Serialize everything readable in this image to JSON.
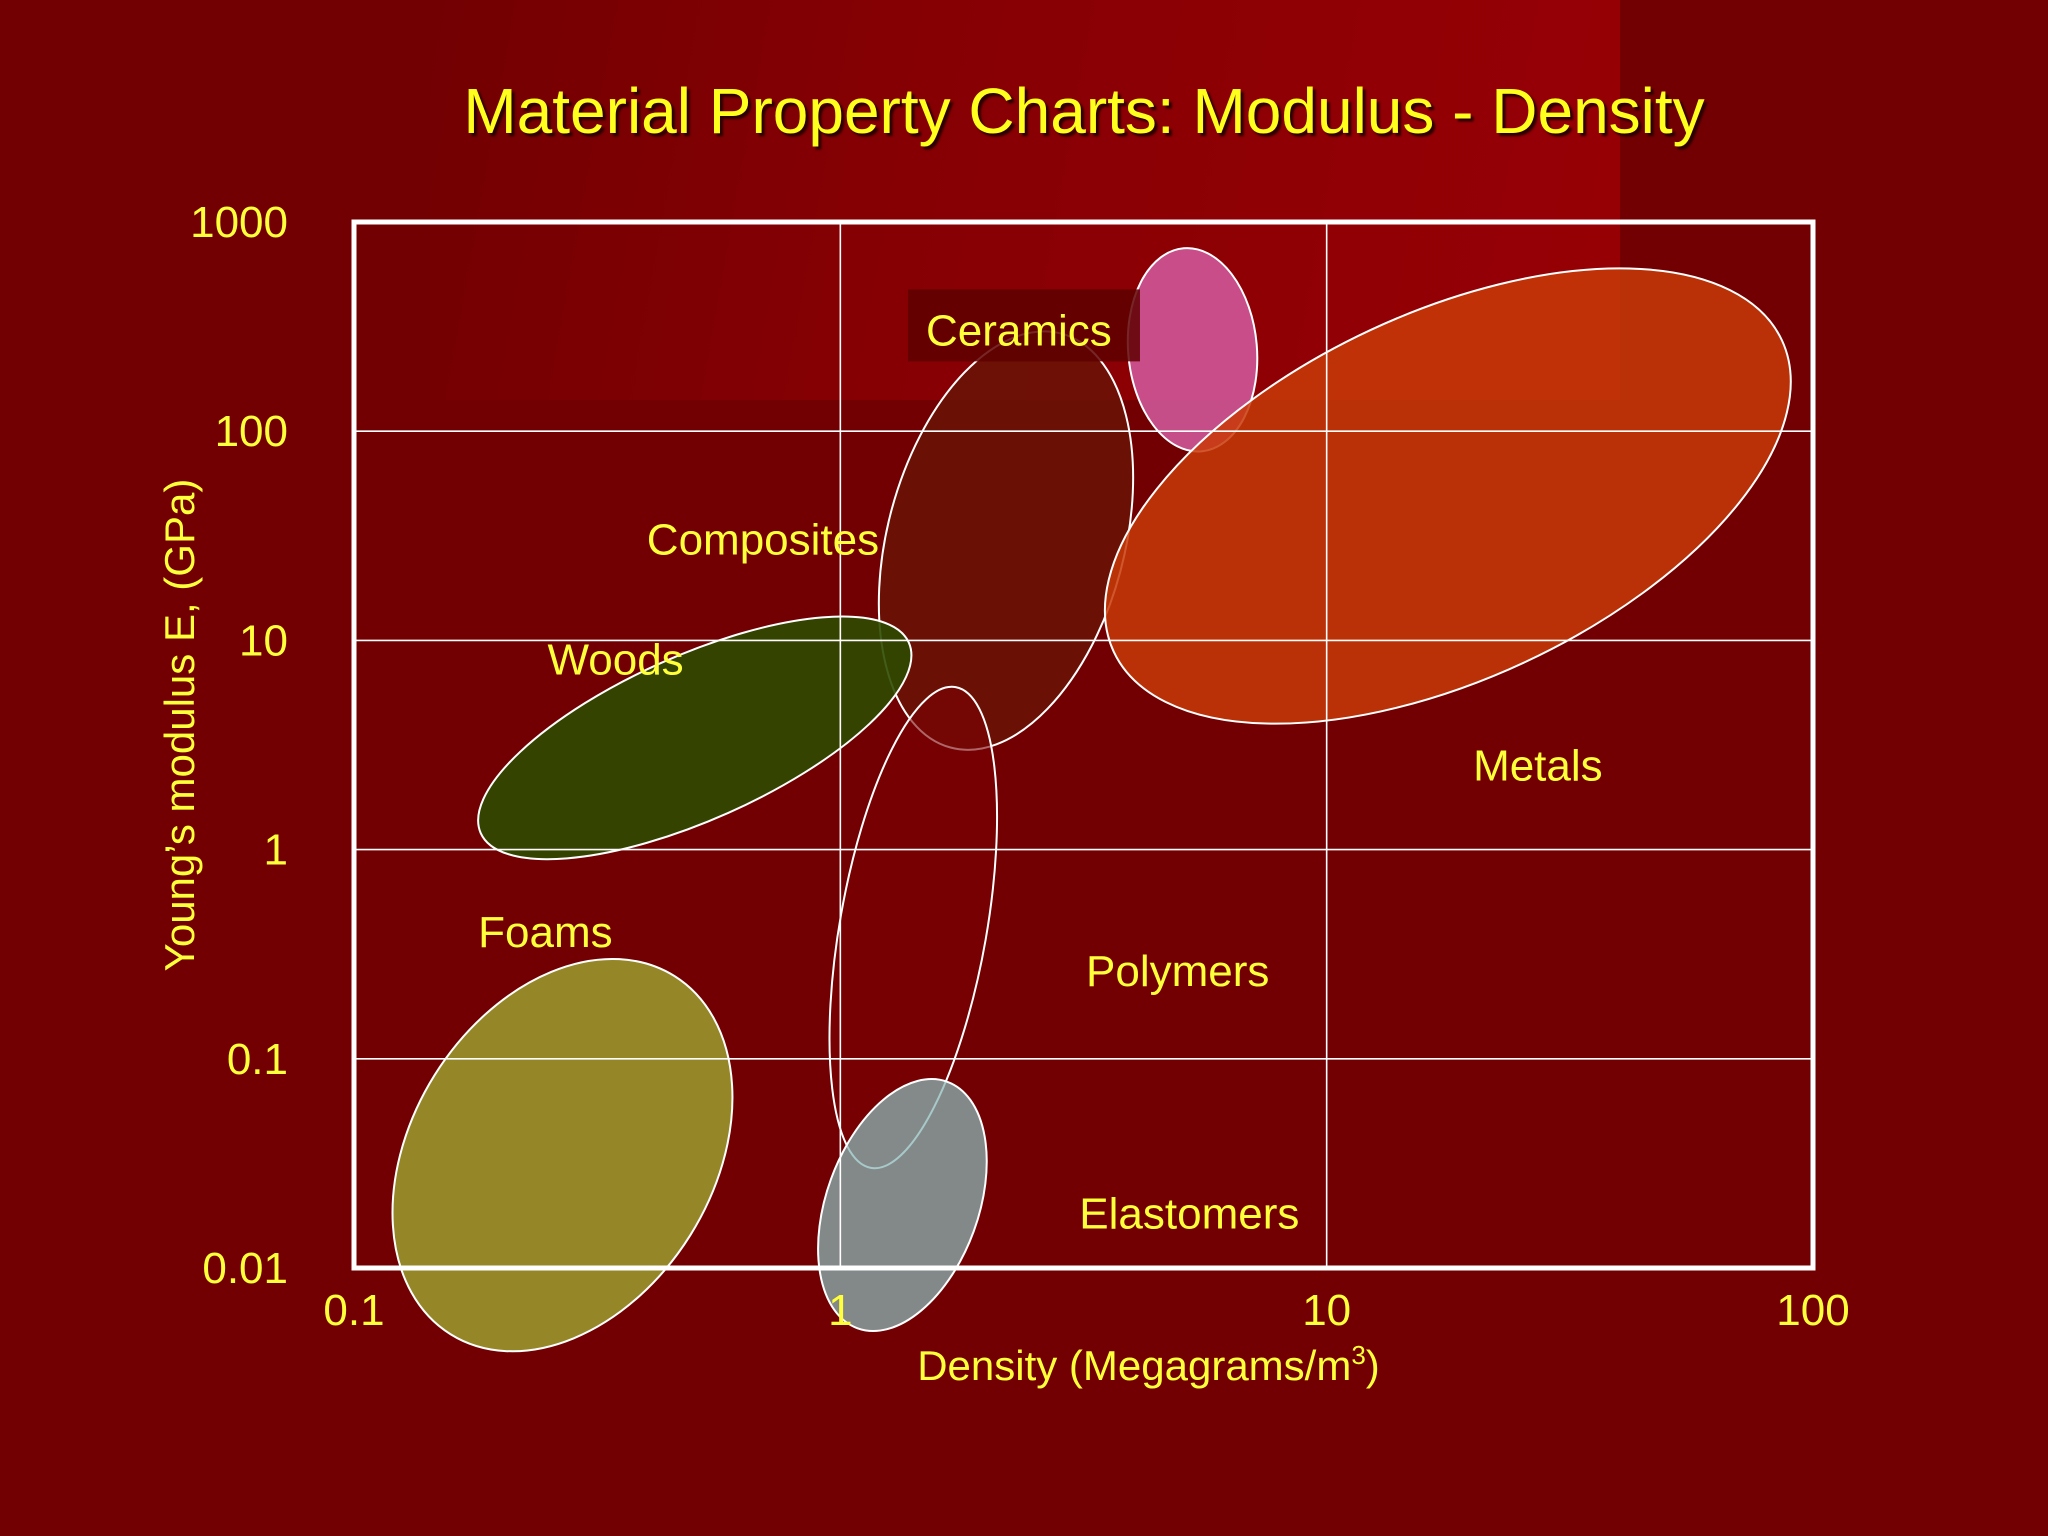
{
  "title": "Material Property Charts: Modulus - Density",
  "chart_data": {
    "type": "scatter",
    "title": "Material Property Charts: Modulus - Density",
    "xlabel_main": "Density  (Megagrams/m",
    "xlabel_sup": "3",
    "xlabel_close": ")",
    "ylabel": "Young’s modulus E, (GPa)",
    "xscale": "log",
    "yscale": "log",
    "xlim": [
      0.1,
      100
    ],
    "ylim": [
      0.01,
      1000
    ],
    "xticks": [
      "0.1",
      "1",
      "10",
      "100"
    ],
    "yticks": [
      "1000",
      "100",
      "10",
      "1",
      "0.1",
      "0.01"
    ],
    "grid": true,
    "regions": [
      {
        "name": "Ceramics",
        "density": [
          3.9,
          7.2
        ],
        "modulus": [
          80,
          750
        ],
        "angle": -5,
        "fill": "#d35aa0",
        "opacity": 0.85
      },
      {
        "name": "Composites",
        "density": [
          1.2,
          4.0
        ],
        "modulus": [
          3,
          300
        ],
        "angle": -75,
        "fill": "#6a1206",
        "opacity": 0.9
      },
      {
        "name": "Metals",
        "density": [
          3.5,
          90
        ],
        "modulus": [
          4,
          600
        ],
        "angle": -25,
        "fill": "#c83a08",
        "opacity": 0.85
      },
      {
        "name": "Woods",
        "density": [
          0.18,
          1.4
        ],
        "modulus": [
          0.9,
          13
        ],
        "angle": -24,
        "fill": "#2d4a00",
        "opacity": 0.9
      },
      {
        "name": "Polymers",
        "density": [
          0.95,
          2.1
        ],
        "modulus": [
          0.03,
          6
        ],
        "angle": -80,
        "fill": "#7a0004",
        "opacity": 0.6
      },
      {
        "name": "Elastomers",
        "density": [
          0.9,
          2.0
        ],
        "modulus": [
          0.005,
          0.08
        ],
        "angle": -70,
        "fill": "#8ab7b7",
        "opacity": 0.75
      },
      {
        "name": "Foams",
        "density": [
          0.12,
          0.6
        ],
        "modulus": [
          0.004,
          0.3
        ],
        "angle": -58,
        "fill": "#9a9a2c",
        "opacity": 0.88
      }
    ],
    "labels": [
      {
        "text": "Ceramics",
        "x": 1.5,
        "y": 300,
        "box": true
      },
      {
        "text": "Composites",
        "x": 0.4,
        "y": 30
      },
      {
        "text": "Woods",
        "x": 0.25,
        "y": 8
      },
      {
        "text": "Metals",
        "x": 20,
        "y": 2.5
      },
      {
        "text": "Foams",
        "x": 0.18,
        "y": 0.4
      },
      {
        "text": "Polymers",
        "x": 3.2,
        "y": 0.26
      },
      {
        "text": "Elastomers",
        "x": 3.1,
        "y": 0.018
      }
    ]
  },
  "colors": {
    "background": "#720002",
    "text": "#ffff3a",
    "frame": "#ffffff"
  }
}
